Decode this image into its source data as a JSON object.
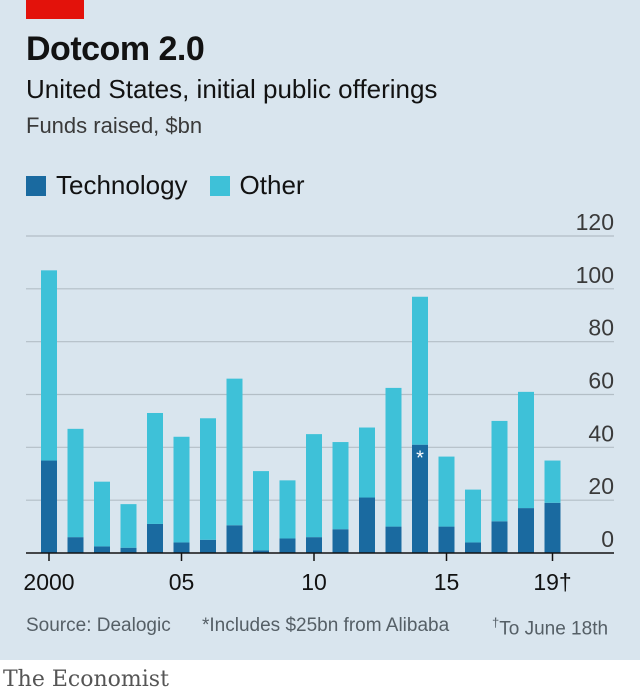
{
  "header": {
    "title": "Dotcom 2.0",
    "subtitle": "United States, initial public offerings",
    "unit": "Funds raised, $bn"
  },
  "legend": [
    {
      "label": "Technology",
      "color": "#1a6aa0"
    },
    {
      "label": "Other",
      "color": "#3ec1d8"
    }
  ],
  "colors": {
    "technology": "#1a6aa0",
    "other": "#3ec1d8",
    "brand_red": "#e3120b",
    "background": "#d9e5ee"
  },
  "annotation": {
    "year": "2014",
    "text": "*"
  },
  "footer": {
    "source": "Source: Dealogic",
    "note1": "*Includes $25bn from Alibaba",
    "note2_mark": "†",
    "note2": "To June 18th",
    "brand": "The Economist"
  },
  "chart_data": {
    "type": "bar",
    "stacked": true,
    "categories": [
      "2000",
      "2001",
      "2002",
      "2003",
      "2004",
      "2005",
      "2006",
      "2007",
      "2008",
      "2009",
      "2010",
      "2011",
      "2012",
      "2013",
      "2014",
      "2015",
      "2016",
      "2017",
      "2018",
      "2019"
    ],
    "x_tick_labels": [
      {
        "category": "2000",
        "label": "2000"
      },
      {
        "category": "2005",
        "label": "05"
      },
      {
        "category": "2010",
        "label": "10"
      },
      {
        "category": "2015",
        "label": "15"
      },
      {
        "category": "2019",
        "label": "19†"
      }
    ],
    "series": [
      {
        "name": "Technology",
        "values": [
          35,
          6,
          2.5,
          2,
          11,
          4,
          5,
          10.5,
          1,
          5.5,
          6,
          9,
          21,
          10,
          41,
          10,
          4,
          12,
          17,
          19
        ]
      },
      {
        "name": "Other",
        "values": [
          72,
          41,
          24.5,
          16.5,
          42,
          40,
          46,
          55.5,
          30,
          22,
          39,
          33,
          26.5,
          52.5,
          56,
          26.5,
          20,
          38,
          44,
          16
        ]
      }
    ],
    "ylim": [
      0,
      120
    ],
    "yticks": [
      0,
      20,
      40,
      60,
      80,
      100,
      120
    ],
    "y_axis_side": "right",
    "grid": true
  }
}
